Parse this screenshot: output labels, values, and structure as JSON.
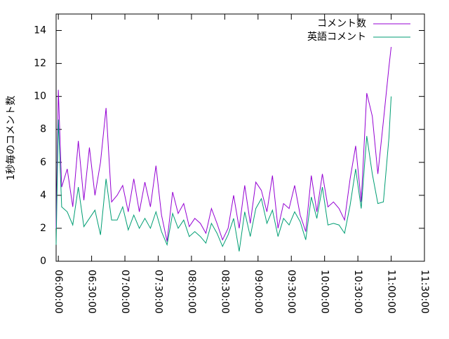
{
  "chart_data": {
    "type": "line",
    "ylabel": "1秒毎のコメント数",
    "x": [
      "05:58:00",
      "06:00:00",
      "06:03:00",
      "06:08:00",
      "06:13:00",
      "06:18:00",
      "06:23:00",
      "06:28:00",
      "06:33:00",
      "06:38:00",
      "06:43:00",
      "06:48:00",
      "06:53:00",
      "06:58:00",
      "07:03:00",
      "07:08:00",
      "07:13:00",
      "07:18:00",
      "07:23:00",
      "07:28:00",
      "07:33:00",
      "07:38:00",
      "07:43:00",
      "07:48:00",
      "07:53:00",
      "07:58:00",
      "08:03:00",
      "08:08:00",
      "08:13:00",
      "08:18:00",
      "08:23:00",
      "08:28:00",
      "08:33:00",
      "08:38:00",
      "08:43:00",
      "08:48:00",
      "08:53:00",
      "08:58:00",
      "09:03:00",
      "09:08:00",
      "09:13:00",
      "09:18:00",
      "09:23:00",
      "09:28:00",
      "09:33:00",
      "09:38:00",
      "09:43:00",
      "09:48:00",
      "09:53:00",
      "09:58:00",
      "10:03:00",
      "10:08:00",
      "10:13:00",
      "10:18:00",
      "10:23:00",
      "10:28:00",
      "10:33:00",
      "10:38:00",
      "10:43:00",
      "10:48:00",
      "10:53:00",
      "10:58:00",
      "11:00:00"
    ],
    "series": [
      {
        "name": "コメント数",
        "color": "#9400d3",
        "values": [
          2.0,
          10.4,
          4.5,
          5.6,
          3.3,
          7.3,
          3.7,
          6.9,
          4.0,
          6.0,
          9.3,
          3.6,
          4.0,
          4.6,
          3.0,
          5.0,
          3.0,
          4.8,
          3.3,
          5.8,
          2.8,
          1.2,
          4.2,
          2.9,
          3.5,
          2.1,
          2.6,
          2.3,
          1.7,
          3.2,
          2.3,
          1.3,
          2.0,
          4.0,
          2.0,
          4.6,
          2.3,
          4.8,
          4.3,
          3.0,
          5.2,
          2.0,
          3.5,
          3.2,
          4.6,
          2.8,
          1.8,
          5.2,
          3.0,
          5.3,
          3.3,
          3.6,
          3.2,
          2.5,
          5.0,
          7.0,
          3.6,
          10.2,
          8.8,
          5.3,
          8.5,
          11.8,
          13.0
        ]
      },
      {
        "name": "英語コメント",
        "color": "#009e73",
        "values": [
          1.0,
          8.6,
          3.3,
          3.0,
          2.2,
          4.5,
          2.1,
          2.6,
          3.1,
          1.6,
          5.0,
          2.5,
          2.5,
          3.3,
          1.9,
          2.8,
          2.0,
          2.6,
          2.0,
          3.0,
          1.8,
          1.0,
          2.9,
          2.0,
          2.5,
          1.5,
          1.8,
          1.5,
          1.1,
          2.3,
          1.7,
          0.9,
          1.6,
          2.6,
          0.6,
          3.0,
          1.5,
          3.2,
          3.8,
          2.3,
          3.1,
          1.5,
          2.6,
          2.2,
          3.0,
          2.4,
          1.3,
          3.9,
          2.6,
          4.5,
          2.2,
          2.3,
          2.2,
          1.7,
          3.4,
          5.6,
          3.2,
          7.6,
          5.3,
          3.5,
          3.6,
          7.5,
          10.0
        ]
      }
    ],
    "xlim": [
      "05:58:00",
      "11:30:00"
    ],
    "xticks": [
      "06:00:00",
      "06:30:00",
      "07:00:00",
      "07:30:00",
      "08:00:00",
      "08:30:00",
      "09:00:00",
      "09:30:00",
      "10:00:00",
      "10:30:00",
      "11:00:00",
      "11:30:00"
    ],
    "ylim": [
      0,
      15
    ],
    "yticks": [
      0,
      2,
      4,
      6,
      8,
      10,
      12,
      14
    ],
    "legend": "top-right"
  }
}
